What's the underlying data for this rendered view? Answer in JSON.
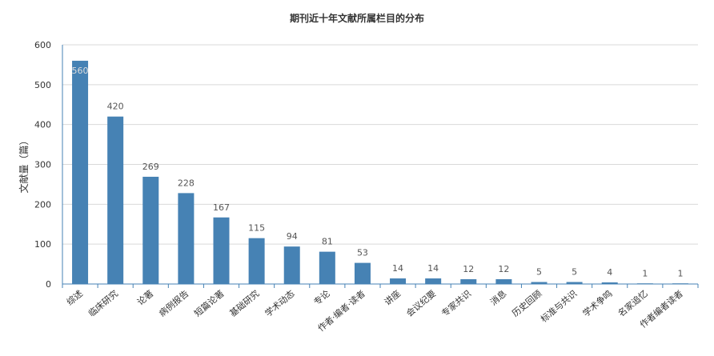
{
  "chart_data": {
    "type": "bar",
    "title": "期刊近十年文献所属栏目的分布",
    "ylabel": "文献量（篇）",
    "xlabel": "",
    "ylim": [
      0,
      600
    ],
    "yticks": [
      0,
      100,
      200,
      300,
      400,
      500,
      600
    ],
    "grid": true,
    "categories": [
      "综述",
      "临床研究",
      "论著",
      "病例报告",
      "短篇论著",
      "基础研究",
      "学术动态",
      "专论",
      "作者·编者·读者",
      "讲座",
      "会议纪要",
      "专家共识",
      "消息",
      "历史回顾",
      "标准与共识",
      "学术争鸣",
      "名家追忆",
      "作者编者读者"
    ],
    "values": [
      560,
      420,
      269,
      228,
      167,
      115,
      94,
      81,
      53,
      14,
      14,
      12,
      12,
      5,
      5,
      4,
      1,
      1
    ],
    "colors": {
      "bar": "#4682b4",
      "axis": "#4682b4",
      "grid": "#d9d9d9",
      "text": "#333333",
      "label": "#555555"
    }
  }
}
